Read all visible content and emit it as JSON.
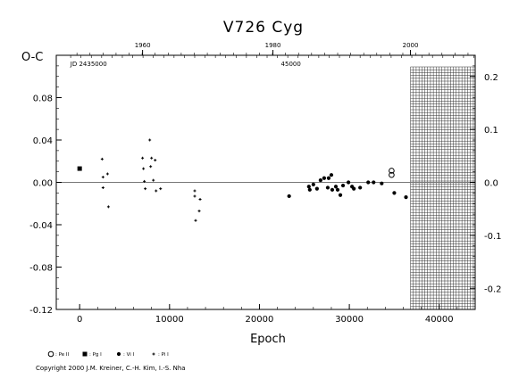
{
  "chart_data": {
    "type": "scatter",
    "title": "V726  Cyg",
    "xlabel": "Epoch",
    "ylabel": "O-C",
    "xlim": [
      -2600,
      44000
    ],
    "ylim": [
      -0.12,
      0.12
    ],
    "x_ticks": [
      0,
      10000,
      20000,
      30000,
      40000
    ],
    "x_tick_labels": [
      "0",
      "10000",
      "20000",
      "30000",
      "40000"
    ],
    "y_ticks": [
      -0.12,
      -0.08,
      -0.04,
      0.0,
      0.04,
      0.08
    ],
    "y_tick_labels": [
      "-0.12",
      "-0.08",
      "-0.04",
      "0.00",
      "0.04",
      "0.08"
    ],
    "top_axis": {
      "year_labels": [
        {
          "label": "1960",
          "epoch": 7000
        },
        {
          "label": "1980",
          "epoch": 21500
        },
        {
          "label": "2000",
          "epoch": 36800
        }
      ],
      "jd_labels": [
        {
          "label": "JD 2435000",
          "epoch": 1000
        },
        {
          "label": "45000",
          "epoch": 23500
        }
      ]
    },
    "right_axis": {
      "ylim": [
        -0.24,
        0.24
      ],
      "ticks": [
        -0.2,
        -0.1,
        0.0,
        0.1,
        0.2
      ],
      "tick_labels": [
        "-0.2",
        "-0.1",
        "0.0",
        "0.1",
        "0.2"
      ]
    },
    "hatched_region": {
      "x_from": 36800,
      "x_to": 44000
    },
    "grid": false,
    "zero_line": true,
    "legend_position": "bottom-left",
    "series": [
      {
        "name": ": Pe II",
        "marker": "open-circle",
        "points": [
          [
            34700,
            0.011
          ],
          [
            34700,
            0.007
          ]
        ]
      },
      {
        "name": ": Pg I",
        "marker": "filled-square",
        "points": [
          [
            0,
            0.013
          ]
        ]
      },
      {
        "name": ": Vi I",
        "marker": "filled-circle",
        "points": [
          [
            23300,
            -0.013
          ],
          [
            25500,
            -0.004
          ],
          [
            25600,
            -0.007
          ],
          [
            26000,
            -0.002
          ],
          [
            26400,
            -0.006
          ],
          [
            26800,
            0.002
          ],
          [
            27200,
            0.004
          ],
          [
            27600,
            -0.005
          ],
          [
            27700,
            0.004
          ],
          [
            28000,
            0.007
          ],
          [
            28100,
            -0.007
          ],
          [
            28500,
            -0.004
          ],
          [
            28700,
            -0.007
          ],
          [
            29000,
            -0.012
          ],
          [
            29300,
            -0.003
          ],
          [
            29900,
            0.0
          ],
          [
            30300,
            -0.004
          ],
          [
            30500,
            -0.006
          ],
          [
            31200,
            -0.005
          ],
          [
            32100,
            0.0
          ],
          [
            32700,
            0.0
          ],
          [
            33600,
            -0.001
          ],
          [
            35000,
            -0.01
          ],
          [
            36300,
            -0.014
          ]
        ]
      },
      {
        "name": ": Pi I",
        "marker": "plus",
        "points": [
          [
            2500,
            0.022
          ],
          [
            2600,
            0.005
          ],
          [
            2600,
            -0.005
          ],
          [
            3100,
            0.008
          ],
          [
            3200,
            -0.023
          ],
          [
            7000,
            0.023
          ],
          [
            7100,
            0.013
          ],
          [
            7200,
            0.001
          ],
          [
            7300,
            -0.006
          ],
          [
            7800,
            0.04
          ],
          [
            7900,
            0.015
          ],
          [
            8000,
            0.023
          ],
          [
            8200,
            0.002
          ],
          [
            8400,
            0.021
          ],
          [
            8500,
            -0.008
          ],
          [
            9000,
            -0.006
          ],
          [
            12800,
            -0.008
          ],
          [
            12800,
            -0.013
          ],
          [
            12900,
            -0.036
          ],
          [
            13300,
            -0.027
          ],
          [
            13400,
            -0.016
          ]
        ]
      }
    ]
  },
  "copyright": "Copyright 2000 J.M. Kreiner, C.-H. Kim, I.-S. Nha"
}
